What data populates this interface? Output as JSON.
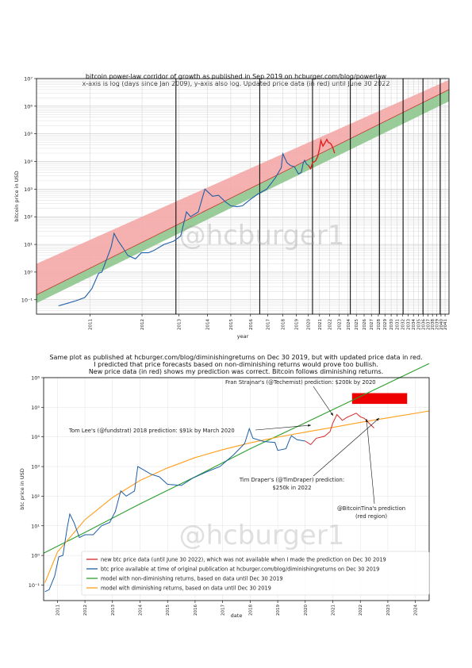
{
  "charts_text": {
    "top_title_1": "bitcoin power-law corridor of growth as published in Sep 2019 on hcburger.com/blog/powerlaw",
    "top_title_2": "x-axis is log (days since Jan 2009), y-axis also log. Updated price data (in red) until June 30 2022",
    "bottom_title_1": "Same plot as published at hcburger.com/blog/diminishingreturns on Dec 30 2019, but with updated price data in red.",
    "bottom_title_2": "I predicted that price forecasts based on non-diminishing returns would prove too bullish.",
    "bottom_title_3": "New price data (in red) shows my prediction was correct. Bitcoin follows diminishing returns.",
    "watermark": "@hcburger1"
  },
  "chart_data": [
    {
      "type": "line",
      "title": "bitcoin power-law corridor of growth as published in Sep 2019 on hcburger.com/blog/powerlaw",
      "subtitle": "x-axis is log (days since Jan 2009), y-axis also log. Updated price data (in red) until June 30 2022",
      "xlabel": "year",
      "ylabel": "bitcoin price in USD",
      "xscale": "log (days since Jan 2009)",
      "yscale": "log",
      "ylim": [
        0.03,
        10000000
      ],
      "xlim_days": [
        480,
        12053
      ],
      "yticks": [
        {
          "label": "10⁻¹",
          "value": 0.1
        },
        {
          "label": "10⁰",
          "value": 1
        },
        {
          "label": "10¹",
          "value": 10
        },
        {
          "label": "10²",
          "value": 100
        },
        {
          "label": "10³",
          "value": 1000
        },
        {
          "label": "10⁴",
          "value": 10000
        },
        {
          "label": "10⁵",
          "value": 100000
        },
        {
          "label": "10⁶",
          "value": 1000000
        },
        {
          "label": "10⁷",
          "value": 10000000
        }
      ],
      "xticks": [
        {
          "label": "2011",
          "days": 730
        },
        {
          "label": "2012",
          "days": 1095
        },
        {
          "label": "2013",
          "days": 1461
        },
        {
          "label": "2014",
          "days": 1826
        },
        {
          "label": "2015",
          "days": 2191
        },
        {
          "label": "2016",
          "days": 2556
        },
        {
          "label": "2017",
          "days": 2922
        },
        {
          "label": "2018",
          "days": 3287
        },
        {
          "label": "2019",
          "days": 3652
        },
        {
          "label": "2020",
          "days": 4017
        },
        {
          "label": "2021",
          "days": 4383
        },
        {
          "label": "2022",
          "days": 4748
        },
        {
          "label": "2023",
          "days": 5113
        },
        {
          "label": "2024",
          "days": 5478
        },
        {
          "label": "2025",
          "days": 5844
        },
        {
          "label": "2026",
          "days": 6209
        },
        {
          "label": "2027",
          "days": 6574
        },
        {
          "label": "2028",
          "days": 6939
        },
        {
          "label": "2029",
          "days": 7305
        },
        {
          "label": "2030",
          "days": 7670
        },
        {
          "label": "2031",
          "days": 8035
        },
        {
          "label": "2032",
          "days": 8400
        },
        {
          "label": "2033",
          "days": 8766
        },
        {
          "label": "2034",
          "days": 9131
        },
        {
          "label": "2035",
          "days": 9496
        },
        {
          "label": "2036",
          "days": 9861
        },
        {
          "label": "2037",
          "days": 10227
        },
        {
          "label": "2038",
          "days": 10592
        },
        {
          "label": "2039",
          "days": 10957
        },
        {
          "label": "2040",
          "days": 11322
        },
        {
          "label": "2041",
          "days": 11688
        }
      ],
      "halving_lines_days": [
        1427,
        2747,
        4149,
        5575,
        6999,
        8420,
        9835,
        11250
      ],
      "corridor": {
        "upper_band": {
          "color": "#f4a7a7",
          "points": [
            [
              480,
              2.0
            ],
            [
              12053,
              9000000
            ]
          ]
        },
        "mid_line": {
          "color": "#c0392b",
          "points": [
            [
              480,
              0.15
            ],
            [
              12053,
              4000000
            ]
          ]
        },
        "lower_band": {
          "color": "#8fc78f",
          "points": [
            [
              480,
              0.075
            ],
            [
              12053,
              1500000
            ]
          ]
        }
      },
      "series": [
        {
          "name": "",
          "color": "#1f5fa6",
          "points": [
            [
              570,
              0.06
            ],
            [
              600,
              0.07
            ],
            [
              650,
              0.09
            ],
            [
              700,
              0.12
            ],
            [
              740,
              0.25
            ],
            [
              780,
              0.9
            ],
            [
              800,
              1.0
            ],
            [
              860,
              8
            ],
            [
              880,
              25
            ],
            [
              910,
              13
            ],
            [
              940,
              8
            ],
            [
              980,
              4
            ],
            [
              1040,
              3
            ],
            [
              1090,
              5
            ],
            [
              1150,
              5
            ],
            [
              1200,
              6
            ],
            [
              1300,
              10
            ],
            [
              1400,
              13
            ],
            [
              1480,
              20
            ],
            [
              1550,
              150
            ],
            [
              1600,
              100
            ],
            [
              1700,
              150
            ],
            [
              1790,
              1000
            ],
            [
              1830,
              800
            ],
            [
              1900,
              550
            ],
            [
              1990,
              600
            ],
            [
              2100,
              350
            ],
            [
              2190,
              250
            ],
            [
              2300,
              230
            ],
            [
              2400,
              250
            ],
            [
              2556,
              430
            ],
            [
              2700,
              650
            ],
            [
              2900,
              1000
            ],
            [
              3100,
              2500
            ],
            [
              3250,
              6000
            ],
            [
              3290,
              19000
            ],
            [
              3400,
              9000
            ],
            [
              3500,
              7000
            ],
            [
              3600,
              6500
            ],
            [
              3720,
              3500
            ],
            [
              3800,
              4000
            ],
            [
              3860,
              9000
            ],
            [
              3900,
              11000
            ],
            [
              3960,
              8000
            ],
            [
              4017,
              7200
            ]
          ]
        },
        {
          "name": "",
          "color": "#e02020",
          "points": [
            [
              4017,
              7200
            ],
            [
              4090,
              5500
            ],
            [
              4150,
              9000
            ],
            [
              4250,
              10500
            ],
            [
              4320,
              15000
            ],
            [
              4383,
              29000
            ],
            [
              4430,
              57000
            ],
            [
              4500,
              36000
            ],
            [
              4560,
              45000
            ],
            [
              4640,
              63000
            ],
            [
              4700,
              48000
            ],
            [
              4748,
              47000
            ],
            [
              4800,
              42000
            ],
            [
              4870,
              30000
            ],
            [
              4930,
              20000
            ]
          ]
        }
      ]
    },
    {
      "type": "line",
      "title": "Same plot as published at hcburger.com/blog/diminishingreturns on Dec 30 2019, but with updated price data in red.",
      "xlabel": "date",
      "ylabel": "btc price in USD",
      "yscale": "log",
      "ylim": [
        0.03,
        1000000
      ],
      "xlim": [
        "2010-07",
        "2024-06"
      ],
      "yticks": [
        {
          "label": "10⁻¹",
          "value": 0.1
        },
        {
          "label": "10⁰",
          "value": 1
        },
        {
          "label": "10¹",
          "value": 10
        },
        {
          "label": "10²",
          "value": 100
        },
        {
          "label": "10³",
          "value": 1000
        },
        {
          "label": "10⁴",
          "value": 10000
        },
        {
          "label": "10⁵",
          "value": 100000
        },
        {
          "label": "10⁶",
          "value": 1000000
        }
      ],
      "xticks": [
        "2011",
        "2012",
        "2013",
        "2014",
        "2015",
        "2016",
        "2017",
        "2018",
        "2019",
        "2020",
        "2021",
        "2022",
        "2023",
        "2024"
      ],
      "series": [
        {
          "name": "new btc price data (until June 30 2022), which was not available when I made the prediction on Dec 30 2019",
          "color": "#d62728",
          "points": [
            [
              2020.0,
              7200
            ],
            [
              2020.2,
              5500
            ],
            [
              2020.4,
              9000
            ],
            [
              2020.7,
              10500
            ],
            [
              2020.9,
              15000
            ],
            [
              2021.0,
              29000
            ],
            [
              2021.15,
              57000
            ],
            [
              2021.35,
              36000
            ],
            [
              2021.5,
              45000
            ],
            [
              2021.85,
              63000
            ],
            [
              2022.0,
              48000
            ],
            [
              2022.15,
              42000
            ],
            [
              2022.3,
              30000
            ],
            [
              2022.5,
              20000
            ]
          ]
        },
        {
          "name": "btc price available at time of original publication at hcburger.com/blog/diminishingreturns on Dec 30 2019",
          "color": "#1f5fa6",
          "points": [
            [
              2010.55,
              0.06
            ],
            [
              2010.7,
              0.07
            ],
            [
              2010.9,
              0.2
            ],
            [
              2011.05,
              0.9
            ],
            [
              2011.2,
              1.0
            ],
            [
              2011.35,
              8
            ],
            [
              2011.45,
              25
            ],
            [
              2011.6,
              13
            ],
            [
              2011.8,
              4
            ],
            [
              2012.0,
              5
            ],
            [
              2012.3,
              5
            ],
            [
              2012.6,
              10
            ],
            [
              2012.9,
              13
            ],
            [
              2013.1,
              30
            ],
            [
              2013.3,
              150
            ],
            [
              2013.5,
              100
            ],
            [
              2013.8,
              150
            ],
            [
              2013.92,
              1000
            ],
            [
              2014.1,
              800
            ],
            [
              2014.4,
              550
            ],
            [
              2014.7,
              450
            ],
            [
              2015.0,
              250
            ],
            [
              2015.5,
              230
            ],
            [
              2015.9,
              400
            ],
            [
              2016.4,
              650
            ],
            [
              2016.9,
              1000
            ],
            [
              2017.4,
              2500
            ],
            [
              2017.8,
              6000
            ],
            [
              2017.97,
              19000
            ],
            [
              2018.1,
              9000
            ],
            [
              2018.5,
              7000
            ],
            [
              2018.9,
              6500
            ],
            [
              2019.0,
              3500
            ],
            [
              2019.3,
              4000
            ],
            [
              2019.45,
              9000
            ],
            [
              2019.5,
              11000
            ],
            [
              2019.7,
              8000
            ],
            [
              2020.0,
              7200
            ]
          ]
        },
        {
          "name": "model with non-diminishing returns, based on data until Dec 30 2019",
          "color": "#2ca02c",
          "points": [
            [
              2010.5,
              1.2
            ],
            [
              2012.0,
              6
            ],
            [
              2014.0,
              55
            ],
            [
              2016.0,
              450
            ],
            [
              2018.0,
              4000
            ],
            [
              2020.0,
              30000
            ],
            [
              2022.0,
              230000
            ],
            [
              2024.5,
              3000000
            ]
          ]
        },
        {
          "name": "model with diminishing returns, based on data until Dec 30 2019",
          "color": "#ff9f1c",
          "points": [
            [
              2010.55,
              0.12
            ],
            [
              2011.0,
              1.3
            ],
            [
              2012.0,
              16
            ],
            [
              2013.0,
              90
            ],
            [
              2014.0,
              340
            ],
            [
              2015.0,
              900
            ],
            [
              2016.0,
              2000
            ],
            [
              2017.0,
              3700
            ],
            [
              2018.0,
              6300
            ],
            [
              2019.0,
              9800
            ],
            [
              2020.0,
              14500
            ],
            [
              2021.0,
              21000
            ],
            [
              2022.0,
              31000
            ],
            [
              2023.0,
              44000
            ],
            [
              2024.5,
              75000
            ]
          ]
        }
      ],
      "annotations": [
        {
          "text": "Fran Strajnar's (@Techemist) prediction: $200k by 2020"
        },
        {
          "text": "Tom Lee's (@fundstrat) 2018 prediction: $91k by March 2020"
        },
        {
          "text": "Tim Draper's (@TimDraper) prediction: $250k in 2022"
        },
        {
          "text": "@BitcoinTina's prediction (red region)",
          "region": {
            "x": [
              2021.7,
              2023.7
            ],
            "y": [
              130000,
              300000
            ]
          }
        }
      ],
      "legend": "lower-left"
    }
  ]
}
